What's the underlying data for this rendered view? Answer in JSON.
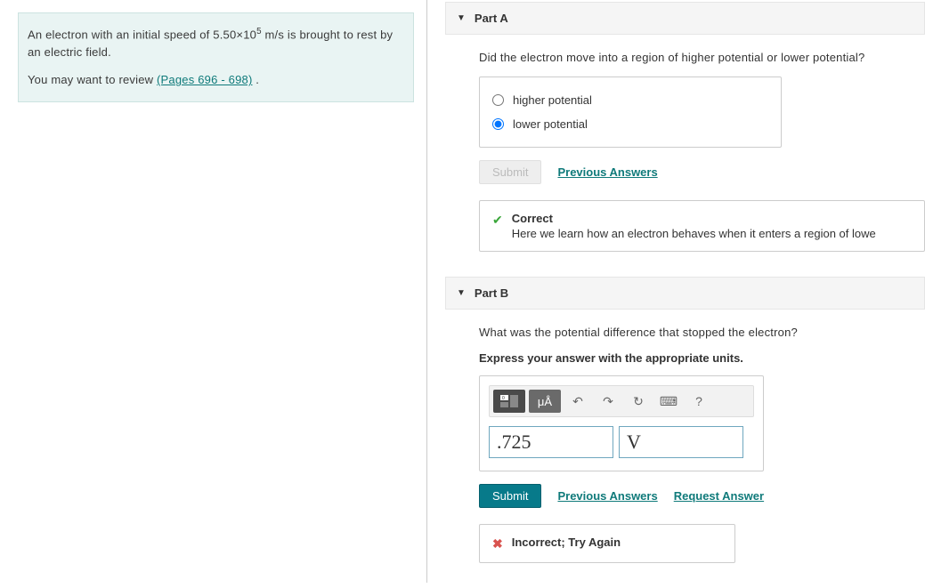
{
  "problem": {
    "line1_html": "An electron with an initial speed of 5.50×10<sup>5</sup> m/s is brought to rest by an electric field.",
    "line2_prefix": "You may want to review ",
    "link_text": "(Pages 696 - 698)",
    "line2_suffix": " ."
  },
  "part_a": {
    "title": "Part A",
    "question": "Did the electron move into a region of higher potential or lower potential?",
    "options": {
      "o1": "higher potential",
      "o2": "lower potential"
    },
    "selected": "o2",
    "submit_label": "Submit",
    "prev_label": "Previous Answers",
    "feedback": {
      "title": "Correct",
      "body": "Here we learn how an electron behaves when it enters a region of lowe"
    }
  },
  "part_b": {
    "title": "Part B",
    "question": "What was the potential difference that stopped the electron?",
    "instruction": "Express your answer with the appropriate units.",
    "value": ".725",
    "unit": "V",
    "submit_label": "Submit",
    "prev_label": "Previous Answers",
    "request_label": "Request Answer",
    "feedback": {
      "title": "Incorrect; Try Again"
    },
    "toolbar": {
      "units_label": "μÅ",
      "template_icon": "▭",
      "undo_icon": "↶",
      "redo_icon": "↷",
      "reset_icon": "↻",
      "keyboard_icon": "⌨",
      "help_icon": "?"
    }
  },
  "colors": {
    "link": "#0f7a7a",
    "submit_bg": "#077a8a",
    "correct": "#3aa63a",
    "incorrect": "#d9534f",
    "problem_bg": "#e9f4f3"
  }
}
